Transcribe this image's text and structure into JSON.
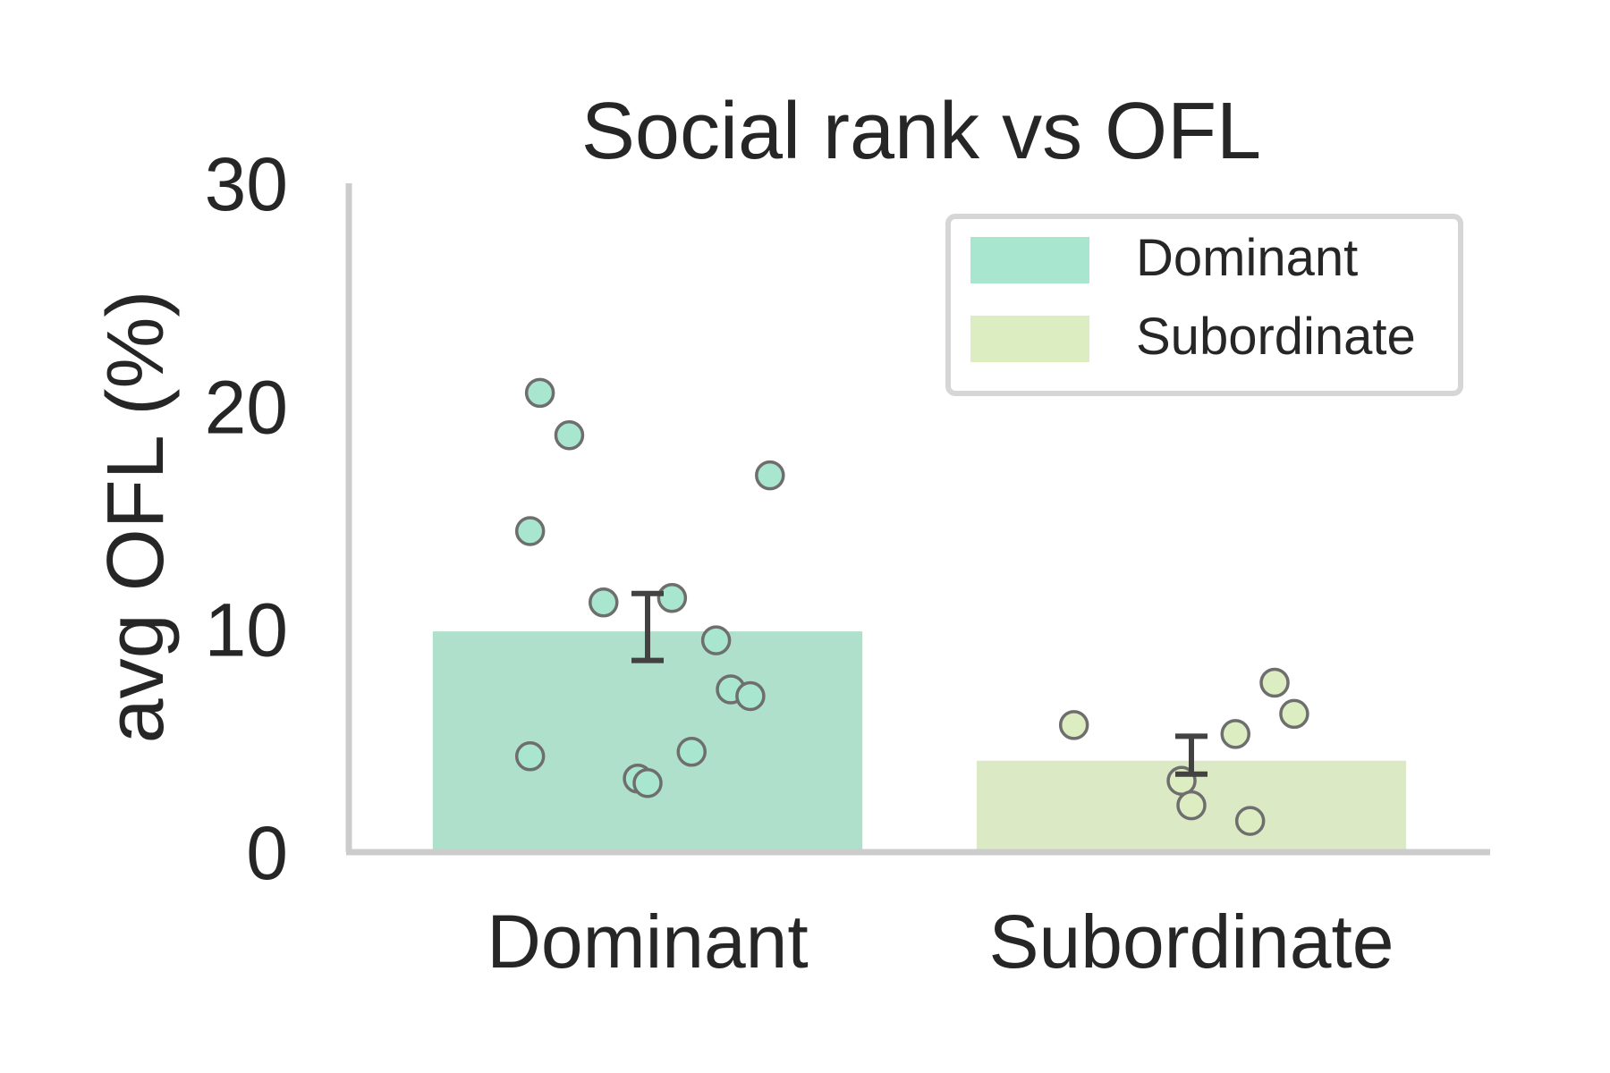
{
  "chart_data": {
    "type": "bar",
    "title": "Social rank vs OFL",
    "xlabel": "",
    "ylabel": "avg OFL (%)",
    "ylim": [
      0,
      30
    ],
    "yticks": [
      "0",
      "10",
      "20",
      "30"
    ],
    "categories": [
      "Dominant",
      "Subordinate"
    ],
    "values": [
      9.9,
      4.1
    ],
    "error_bars": [
      {
        "category": "Dominant",
        "low": 8.6,
        "high": 11.6
      },
      {
        "category": "Subordinate",
        "low": 3.5,
        "high": 5.2
      }
    ],
    "points": [
      {
        "category": "Dominant",
        "values": [
          20.6,
          18.7,
          16.9,
          14.4,
          11.2,
          11.4,
          9.5,
          7.3,
          7.0,
          4.3,
          4.5,
          3.3,
          3.1
        ]
      },
      {
        "category": "Subordinate",
        "values": [
          7.6,
          6.2,
          5.7,
          5.3,
          3.2,
          2.1,
          1.4
        ]
      }
    ],
    "colors": {
      "Dominant": "#aee0cb",
      "Subordinate": "#dbe9c4",
      "Dominant_marker": "#a8e6cf",
      "Subordinate_marker": "#dcedc1",
      "marker_edge": "#6e6e6e",
      "error": "#424242",
      "spine": "#cccccc",
      "text": "#262626"
    },
    "legend": {
      "placement": "top-right",
      "entries": [
        {
          "label": "Dominant",
          "color": "#a8e6cf"
        },
        {
          "label": "Subordinate",
          "color": "#dcedc1"
        }
      ]
    },
    "grid": false
  }
}
